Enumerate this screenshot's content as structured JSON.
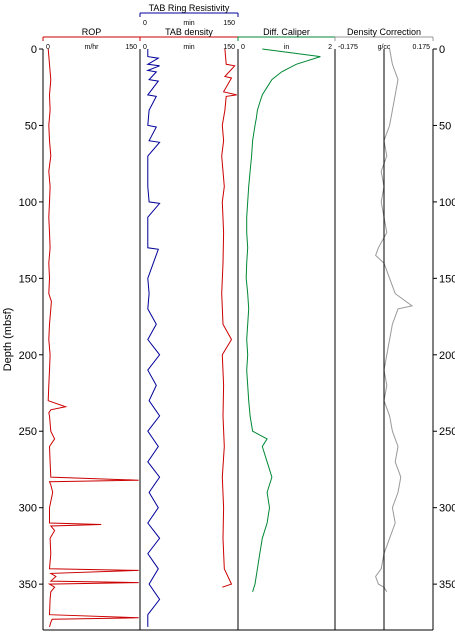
{
  "chart_data": {
    "type": "line",
    "y_axis": {
      "label": "Depth (mbsf)",
      "range": [
        0,
        380
      ],
      "ticks": [
        0,
        50,
        100,
        150,
        200,
        250,
        300,
        350
      ],
      "inverted": true
    },
    "tracks": [
      {
        "key": "rop",
        "header": "ROP",
        "curves": [
          {
            "name": "ROP",
            "color": "#cc0000",
            "scale_min_label": "0",
            "scale_unit_label": "m/hr",
            "scale_max_label": "150",
            "xlim": [
              0,
              150
            ],
            "depth": [
              0,
              10,
              20,
              30,
              40,
              50,
              60,
              70,
              80,
              90,
              100,
              110,
              120,
              130,
              140,
              150,
              160,
              165,
              170,
              180,
              190,
              200,
              210,
              220,
              230,
              234,
              236,
              238,
              240,
              250,
              255,
              260,
              270,
              280,
              282,
              283,
              285,
              290,
              300,
              310,
              311,
              312,
              315,
              320,
              330,
              340,
              341,
              343,
              345,
              348,
              349,
              350,
              352,
              355,
              360,
              370,
              372,
              373,
              375,
              378
            ],
            "values": [
              8,
              10,
              12,
              10,
              11,
              9,
              10,
              12,
              9,
              11,
              10,
              9,
              10,
              11,
              9,
              10,
              9,
              13,
              12,
              10,
              9,
              11,
              10,
              9,
              8,
              35,
              12,
              9,
              10,
              12,
              18,
              10,
              11,
              12,
              148,
              10,
              12,
              15,
              10,
              10,
              90,
              12,
              18,
              11,
              12,
              10,
              148,
              12,
              20,
              12,
              148,
              10,
              18,
              12,
              11,
              10,
              148,
              14,
              12,
              10
            ]
          }
        ]
      },
      {
        "key": "tab",
        "header": "TAB Ring Resistivity",
        "curves": [
          {
            "name": "TAB Ring Resistivity",
            "color": "#000099",
            "scale_min_label": "0",
            "scale_unit_label": "min",
            "scale_max_label": "150",
            "xlim": [
              0,
              150
            ],
            "depth": [
              0,
              5,
              6,
              10,
              11,
              14,
              15,
              20,
              21,
              30,
              31,
              40,
              50,
              51,
              60,
              61,
              70,
              90,
              100,
              101,
              110,
              130,
              131,
              150,
              160,
              170,
              180,
              190,
              200,
              210,
              220,
              230,
              240,
              250,
              260,
              270,
              280,
              290,
              300,
              310,
              320,
              330,
              340,
              350,
              360,
              370,
              378
            ],
            "values": [
              12,
              12,
              28,
              12,
              30,
              12,
              25,
              14,
              28,
              12,
              25,
              14,
              12,
              25,
              14,
              30,
              12,
              12,
              14,
              30,
              12,
              12,
              28,
              12,
              14,
              12,
              25,
              12,
              30,
              12,
              25,
              14,
              30,
              12,
              28,
              12,
              30,
              14,
              28,
              12,
              30,
              12,
              28,
              14,
              30,
              12,
              12
            ]
          },
          {
            "name": "TAB density",
            "color": "#cc0000",
            "scale_min_label": "0",
            "scale_unit_label": "min",
            "scale_max_label": "150",
            "xlim": [
              0,
              150
            ],
            "depth": [
              0,
              10,
              11,
              18,
              19,
              28,
              30,
              31,
              40,
              50,
              60,
              70,
              80,
              90,
              100,
              120,
              140,
              160,
              180,
              190,
              200,
              220,
              240,
              260,
              280,
              300,
              320,
              340,
              350,
              352
            ],
            "values": [
              130,
              132,
              145,
              130,
              140,
              128,
              148,
              132,
              130,
              126,
              128,
              125,
              127,
              129,
              126,
              128,
              127,
              125,
              127,
              140,
              126,
              128,
              127,
              129,
              126,
              128,
              127,
              129,
              140,
              126
            ]
          }
        ]
      },
      {
        "key": "caliper",
        "header": "Diff. Caliper",
        "curves": [
          {
            "name": "Diff. Caliper",
            "color": "#008833",
            "scale_min_label": "0",
            "scale_unit_label": "in",
            "scale_max_label": "2",
            "xlim": [
              0,
              2
            ],
            "depth": [
              0,
              5,
              10,
              15,
              20,
              25,
              30,
              35,
              40,
              45,
              50,
              60,
              70,
              80,
              90,
              100,
              110,
              120,
              130,
              140,
              150,
              160,
              170,
              180,
              190,
              200,
              210,
              220,
              230,
              240,
              250,
              255,
              260,
              270,
              280,
              290,
              300,
              310,
              320,
              330,
              340,
              350,
              355
            ],
            "values": [
              0.5,
              1.7,
              1.2,
              0.9,
              0.7,
              0.6,
              0.5,
              0.45,
              0.4,
              0.38,
              0.35,
              0.3,
              0.28,
              0.25,
              0.22,
              0.2,
              0.18,
              0.18,
              0.2,
              0.18,
              0.17,
              0.2,
              0.22,
              0.2,
              0.18,
              0.2,
              0.18,
              0.2,
              0.22,
              0.25,
              0.3,
              0.6,
              0.5,
              0.6,
              0.7,
              0.6,
              0.65,
              0.6,
              0.5,
              0.45,
              0.4,
              0.35,
              0.3
            ]
          }
        ]
      },
      {
        "key": "density",
        "header": "Density Correction",
        "curves": [
          {
            "name": "Density Correction",
            "color": "#999999",
            "scale_min_label": "-0.175",
            "scale_unit_label": "g/cc",
            "scale_max_label": "0.175",
            "xlim": [
              -0.175,
              0.175
            ],
            "depth": [
              0,
              10,
              20,
              30,
              40,
              50,
              60,
              70,
              80,
              90,
              100,
              110,
              120,
              130,
              135,
              140,
              150,
              160,
              168,
              170,
              180,
              190,
              200,
              210,
              220,
              230,
              240,
              250,
              260,
              270,
              280,
              290,
              300,
              310,
              320,
              330,
              340,
              345,
              350,
              352,
              355
            ],
            "values": [
              0.02,
              0.03,
              0.05,
              0.04,
              0.03,
              0.02,
              0.0,
              0.01,
              -0.01,
              0.0,
              -0.01,
              0.0,
              0.01,
              -0.02,
              -0.03,
              0.0,
              0.02,
              0.04,
              0.1,
              0.05,
              0.03,
              0.02,
              0.01,
              0.0,
              0.01,
              0.0,
              0.02,
              0.03,
              0.05,
              0.04,
              0.06,
              0.05,
              0.03,
              0.04,
              0.02,
              0.0,
              -0.01,
              -0.03,
              -0.02,
              0.0,
              0.01
            ]
          }
        ]
      }
    ]
  }
}
